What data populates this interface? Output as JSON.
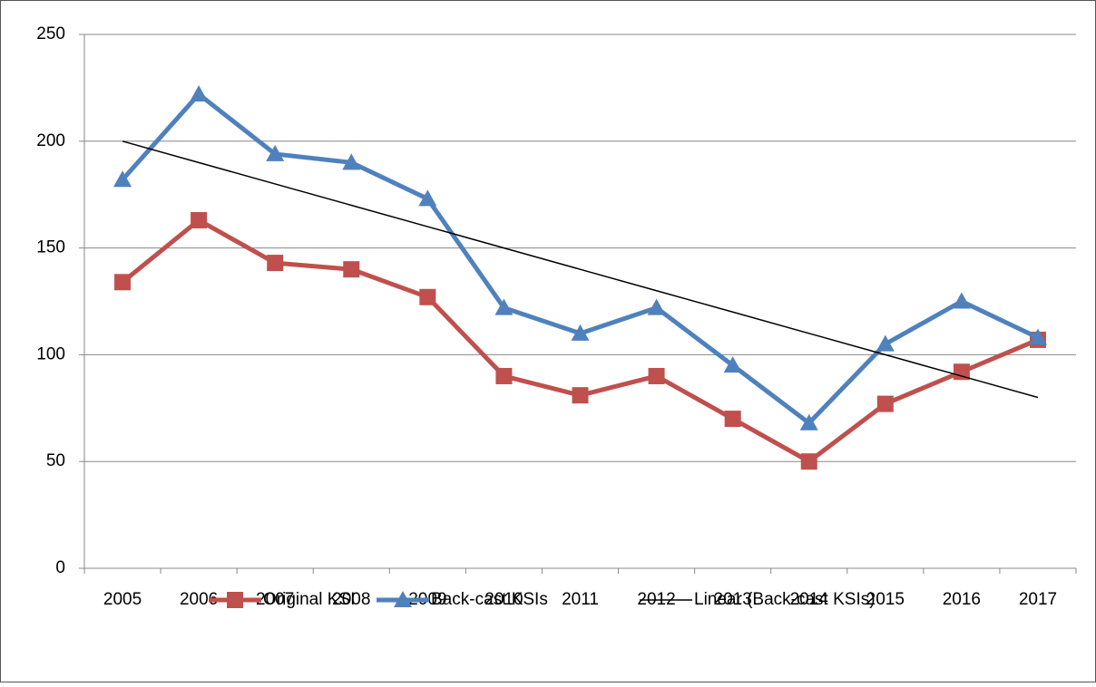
{
  "chart_data": {
    "type": "line",
    "categories": [
      "2005",
      "2006",
      "2007",
      "2008",
      "2009",
      "2010",
      "2011",
      "2012",
      "2013",
      "2014",
      "2015",
      "2016",
      "2017"
    ],
    "series": [
      {
        "name": "Original KSI",
        "color": "#c0504d",
        "marker": "square",
        "values": [
          134,
          163,
          143,
          140,
          127,
          90,
          81,
          90,
          70,
          50,
          77,
          92,
          107
        ]
      },
      {
        "name": "Back-cast KSIs",
        "color": "#4f81bd",
        "marker": "triangle",
        "values": [
          182,
          222,
          194,
          190,
          173,
          122,
          110,
          122,
          95,
          68,
          105,
          125,
          108
        ]
      },
      {
        "name": "Linear (Back-cast KSIs)",
        "color": "#000000",
        "values": [
          200,
          190,
          180,
          170,
          160,
          150,
          140,
          130,
          120,
          110,
          100,
          90,
          80
        ]
      }
    ],
    "ylim": [
      0,
      250
    ],
    "yticks": [
      0,
      50,
      100,
      150,
      200,
      250
    ],
    "grid": true
  }
}
